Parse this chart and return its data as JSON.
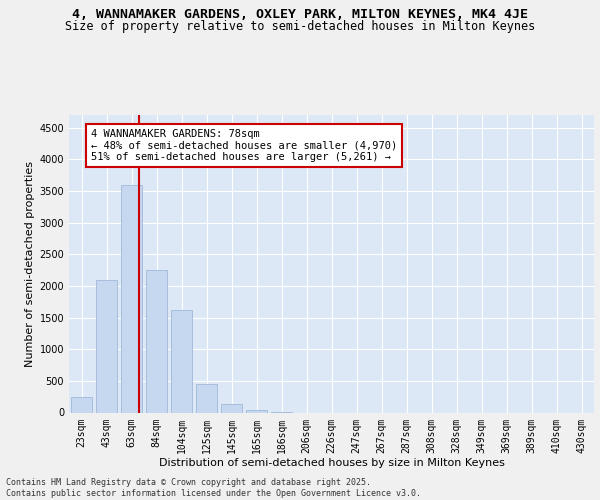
{
  "title_line1": "4, WANNAMAKER GARDENS, OXLEY PARK, MILTON KEYNES, MK4 4JE",
  "title_line2": "Size of property relative to semi-detached houses in Milton Keynes",
  "xlabel": "Distribution of semi-detached houses by size in Milton Keynes",
  "ylabel": "Number of semi-detached properties",
  "footer": "Contains HM Land Registry data © Crown copyright and database right 2025.\nContains public sector information licensed under the Open Government Licence v3.0.",
  "categories": [
    "23sqm",
    "43sqm",
    "63sqm",
    "84sqm",
    "104sqm",
    "125sqm",
    "145sqm",
    "165sqm",
    "186sqm",
    "206sqm",
    "226sqm",
    "247sqm",
    "267sqm",
    "287sqm",
    "308sqm",
    "328sqm",
    "349sqm",
    "369sqm",
    "389sqm",
    "410sqm",
    "430sqm"
  ],
  "values": [
    250,
    2100,
    3600,
    2250,
    1620,
    450,
    130,
    40,
    10,
    0,
    0,
    0,
    0,
    0,
    0,
    0,
    0,
    0,
    0,
    0,
    0
  ],
  "bar_color": "#c5d8f0",
  "bar_edge_color": "#a0b8d8",
  "property_sqm_label": "78sqm",
  "property_name": "4 WANNAMAKER GARDENS",
  "pct_smaller": 48,
  "n_smaller": 4970,
  "pct_larger": 51,
  "n_larger": 5261,
  "vline_color": "#cc0000",
  "vline_position": 2.3,
  "annotation_box_color": "#cc0000",
  "ylim": [
    0,
    4700
  ],
  "yticks": [
    0,
    500,
    1000,
    1500,
    2000,
    2500,
    3000,
    3500,
    4000,
    4500
  ],
  "bg_color": "#dce8f5",
  "grid_color": "#ffffff",
  "fig_bg_color": "#f0f0f0",
  "title_fontsize": 9.5,
  "subtitle_fontsize": 8.5,
  "axis_label_fontsize": 8,
  "tick_fontsize": 7,
  "annotation_fontsize": 7.5
}
